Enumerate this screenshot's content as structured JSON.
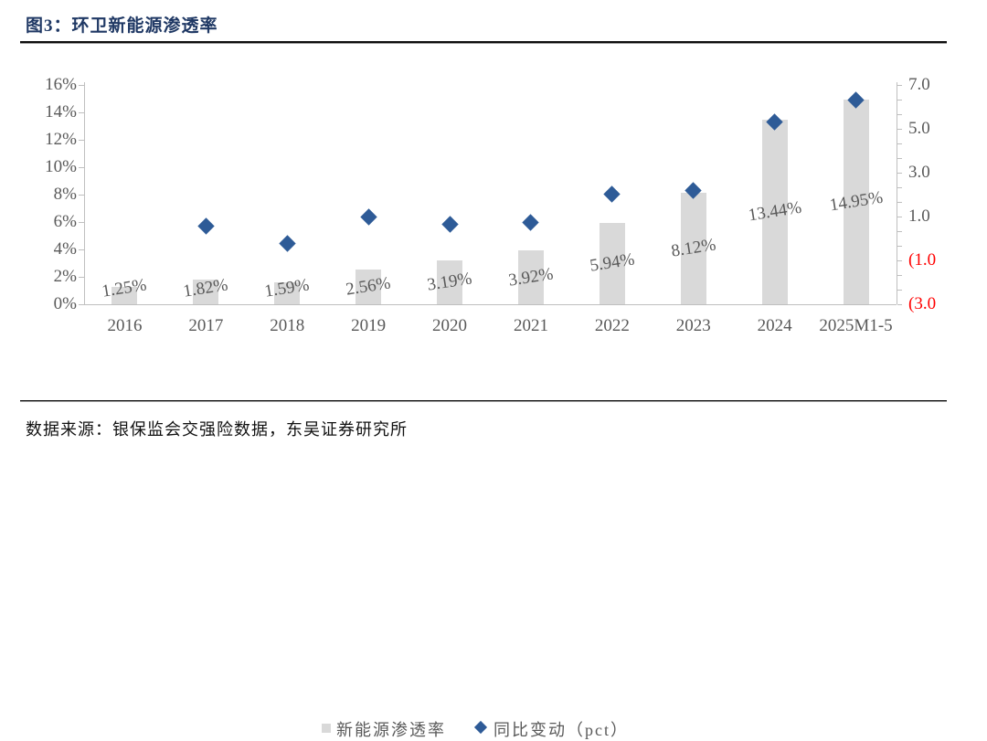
{
  "header": {
    "title": "图3：环卫新能源渗透率"
  },
  "footer": {
    "source": "数据来源：银保监会交强险数据，东吴证券研究所"
  },
  "colors": {
    "title_navy": "#1F3864",
    "diamond_blue": "#2E5B97",
    "bar_gray": "#D9D9D9",
    "axis_text_gray": "#595959",
    "negative_red": "#FF0000",
    "axis_line_gray": "#BFBFBF"
  },
  "legend": {
    "items": [
      {
        "label": "新能源渗透率",
        "marker": "square-icon"
      },
      {
        "label": "同比变动（pct）",
        "marker": "diamond-icon"
      }
    ]
  },
  "chart_data": {
    "type": "combo (bar + scatter)",
    "title": "环卫新能源渗透率",
    "categories": [
      "2016",
      "2017",
      "2018",
      "2019",
      "2020",
      "2021",
      "2022",
      "2023",
      "2024",
      "2025M1-5"
    ],
    "series": [
      {
        "name": "新能源渗透率",
        "type": "bar",
        "axis": "left",
        "unit": "%",
        "values": [
          1.25,
          1.82,
          1.59,
          2.56,
          3.19,
          3.92,
          5.94,
          8.12,
          13.44,
          14.95
        ],
        "labels": [
          "1.25%",
          "1.82%",
          "1.59%",
          "2.56%",
          "3.19%",
          "3.92%",
          "5.94%",
          "8.12%",
          "13.44%",
          "14.95%"
        ]
      },
      {
        "name": "同比变动（pct）",
        "type": "scatter",
        "axis": "right",
        "unit": "pct",
        "values": [
          null,
          0.57,
          -0.23,
          0.97,
          0.63,
          0.73,
          2.02,
          2.18,
          5.32,
          6.3
        ]
      }
    ],
    "left_axis": {
      "min": 0,
      "max": 16,
      "tick_labels": [
        "0%",
        "2%",
        "4%",
        "6%",
        "8%",
        "10%",
        "12%",
        "14%",
        "16%"
      ]
    },
    "right_axis": {
      "min": -3,
      "max": 7,
      "ticks": [
        {
          "value": 7,
          "label": "7.0",
          "negative": false
        },
        {
          "value": 5,
          "label": "5.0",
          "negative": false
        },
        {
          "value": 3,
          "label": "3.0",
          "negative": false
        },
        {
          "value": 1,
          "label": "1.0",
          "negative": false
        },
        {
          "value": -1,
          "label": "(1.0",
          "negative": true
        },
        {
          "value": -3,
          "label": "(3.0",
          "negative": true
        }
      ]
    },
    "grid": false,
    "legend_position": "bottom"
  }
}
